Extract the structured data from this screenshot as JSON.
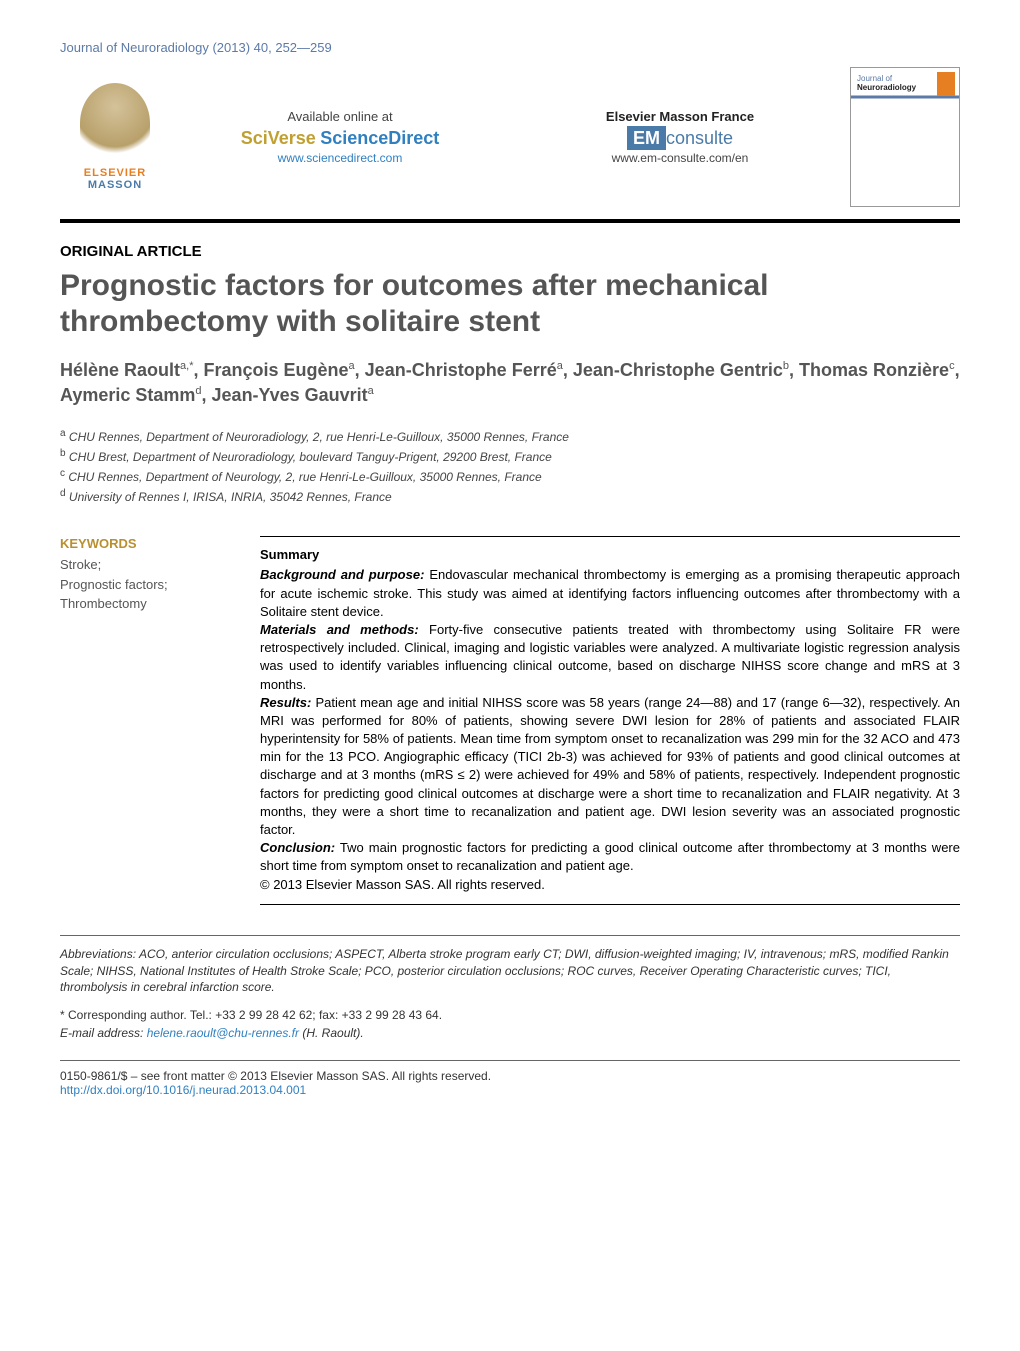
{
  "journal_ref": "Journal of Neuroradiology (2013) 40, 252—259",
  "header": {
    "elsevier": "ELSEVIER",
    "masson": "MASSON",
    "available_online": "Available online at",
    "sciverse": "SciVerse",
    "sciencedirect": "ScienceDirect",
    "sd_url": "www.sciencedirect.com",
    "em_label": "Elsevier Masson France",
    "em_prefix": "EM",
    "em_consulte": "consulte",
    "em_url": "www.em-consulte.com/en",
    "cover_journal": "Journal of",
    "cover_name": "Neuroradiology"
  },
  "article_type": "ORIGINAL ARTICLE",
  "title": "Prognostic factors for outcomes after mechanical thrombectomy with solitaire stent",
  "authors_html": "Hélène Raoult<sup>a,*</sup>, François Eugène<sup>a</sup>, Jean-Christophe Ferré<sup>a</sup>, Jean-Christophe Gentric<sup>b</sup>, Thomas Ronzière<sup>c</sup>, Aymeric Stamm<sup>d</sup>, Jean-Yves Gauvrit<sup>a</sup>",
  "affiliations": [
    {
      "sup": "a",
      "text": "CHU Rennes, Department of Neuroradiology, 2, rue Henri-Le-Guilloux, 35000 Rennes, France"
    },
    {
      "sup": "b",
      "text": "CHU Brest, Department of Neuroradiology, boulevard Tanguy-Prigent, 29200 Brest, France"
    },
    {
      "sup": "c",
      "text": "CHU Rennes, Department of Neurology, 2, rue Henri-Le-Guilloux, 35000 Rennes, France"
    },
    {
      "sup": "d",
      "text": "University of Rennes I, IRISA, INRIA, 35042 Rennes, France"
    }
  ],
  "keywords_heading": "KEYWORDS",
  "keywords": "Stroke;\nPrognostic factors;\nThrombectomy",
  "summary_heading": "Summary",
  "summary": {
    "background_label": "Background and purpose:",
    "background": "Endovascular mechanical thrombectomy is emerging as a promising therapeutic approach for acute ischemic stroke. This study was aimed at identifying factors influencing outcomes after thrombectomy with a Solitaire stent device.",
    "methods_label": "Materials and methods:",
    "methods": "Forty-five consecutive patients treated with thrombectomy using Solitaire FR were retrospectively included. Clinical, imaging and logistic variables were analyzed. A multivariate logistic regression analysis was used to identify variables influencing clinical outcome, based on discharge NIHSS score change and mRS at 3 months.",
    "results_label": "Results:",
    "results": "Patient mean age and initial NIHSS score was 58 years (range 24—88) and 17 (range 6—32), respectively. An MRI was performed for 80% of patients, showing severe DWI lesion for 28% of patients and associated FLAIR hyperintensity for 58% of patients. Mean time from symptom onset to recanalization was 299 min for the 32 ACO and 473 min for the 13 PCO. Angiographic efficacy (TICI 2b-3) was achieved for 93% of patients and good clinical outcomes at discharge and at 3 months (mRS ≤ 2) were achieved for 49% and 58% of patients, respectively. Independent prognostic factors for predicting good clinical outcomes at discharge were a short time to recanalization and FLAIR negativity. At 3 months, they were a short time to recanalization and patient age. DWI lesion severity was an associated prognostic factor.",
    "conclusion_label": "Conclusion:",
    "conclusion": "Two main prognostic factors for predicting a good clinical outcome after thrombectomy at 3 months were short time from symptom onset to recanalization and patient age.",
    "copyright": "© 2013 Elsevier Masson SAS. All rights reserved."
  },
  "abbreviations_label": "Abbreviations:",
  "abbreviations": "ACO, anterior circulation occlusions; ASPECT, Alberta stroke program early CT; DWI, diffusion-weighted imaging; IV, intravenous; mRS, modified Rankin Scale; NIHSS, National Institutes of Health Stroke Scale; PCO, posterior circulation occlusions; ROC curves, Receiver Operating Characteristic curves; TICI, thrombolysis in cerebral infarction score.",
  "corresponding": "* Corresponding author. Tel.: +33 2 99 28 42 62; fax: +33 2 99 28 43 64.",
  "email_label": "E-mail address:",
  "email": "helene.raoult@chu-rennes.fr",
  "email_suffix": "(H. Raoult).",
  "footer_line": "0150-9861/$ – see front matter © 2013 Elsevier Masson SAS. All rights reserved.",
  "doi": "http://dx.doi.org/10.1016/j.neurad.2013.04.001"
}
